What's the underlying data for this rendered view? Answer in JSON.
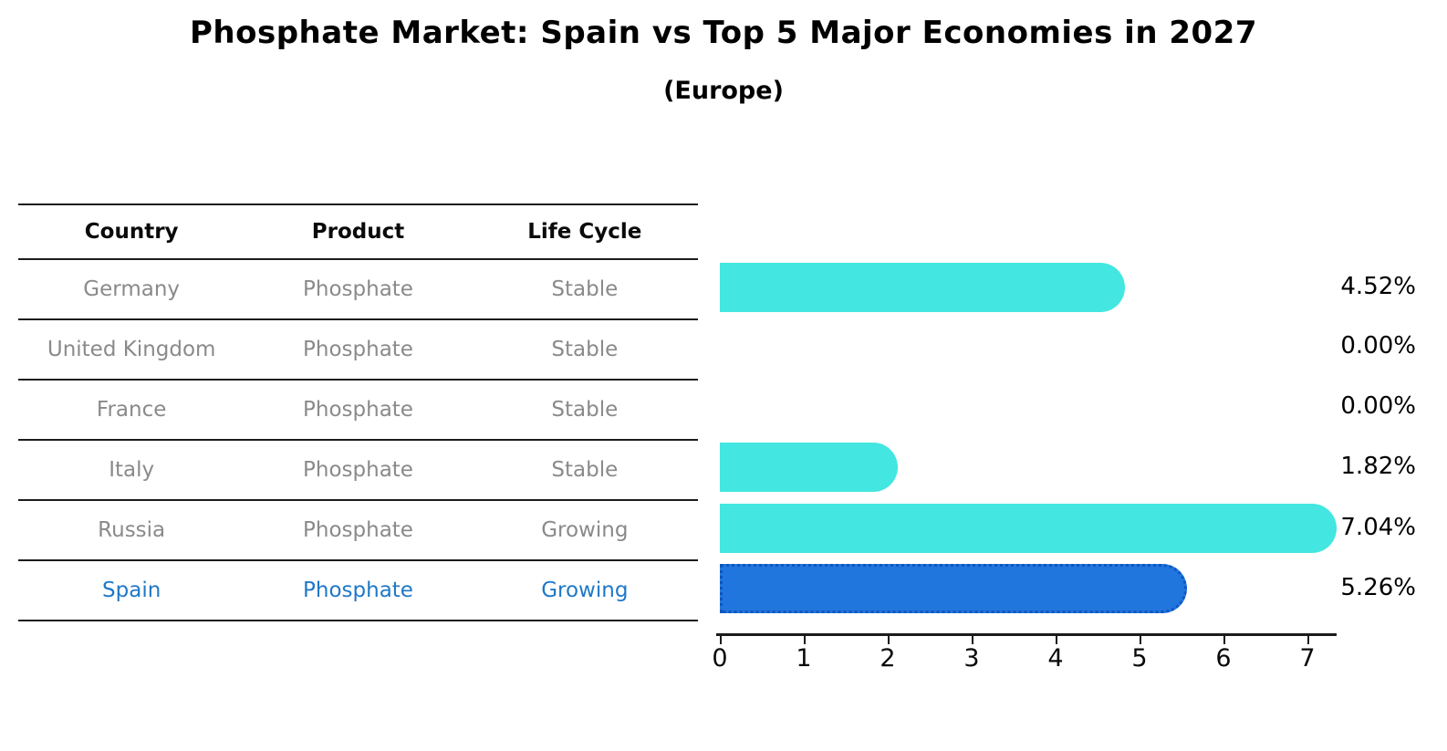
{
  "page": {
    "title": "Phosphate Market: Spain vs Top 5 Major Economies in 2027",
    "subtitle": "(Europe)"
  },
  "table": {
    "headers": [
      "Country",
      "Product",
      "Life Cycle"
    ],
    "rows": [
      {
        "country": "Germany",
        "product": "Phosphate",
        "life_cycle": "Stable",
        "highlighted": false
      },
      {
        "country": "United Kingdom",
        "product": "Phosphate",
        "life_cycle": "Stable",
        "highlighted": false
      },
      {
        "country": "France",
        "product": "Phosphate",
        "life_cycle": "Stable",
        "highlighted": false
      },
      {
        "country": "Italy",
        "product": "Phosphate",
        "life_cycle": "Stable",
        "highlighted": false
      },
      {
        "country": "Russia",
        "product": "Phosphate",
        "life_cycle": "Growing",
        "highlighted": false
      },
      {
        "country": "Spain",
        "product": "Phosphate",
        "life_cycle": "Growing",
        "highlighted": true
      }
    ]
  },
  "chart_data": {
    "type": "bar",
    "orientation": "horizontal",
    "title": "Phosphate Market: Spain vs Top 5 Major Economies in 2027",
    "subtitle": "(Europe)",
    "categories": [
      "Germany",
      "United Kingdom",
      "France",
      "Italy",
      "Russia",
      "Spain"
    ],
    "values": [
      4.52,
      0.0,
      0.0,
      1.82,
      7.04,
      5.26
    ],
    "value_labels": [
      "4.52%",
      "0.00%",
      "0.00%",
      "1.82%",
      "7.04%",
      "5.26%"
    ],
    "x_ticks": [
      "0",
      "1",
      "2",
      "3",
      "4",
      "5",
      "6",
      "7"
    ],
    "xlim": [
      0,
      7.3
    ],
    "xlabel": "",
    "ylabel": "",
    "grid": false,
    "legend": false,
    "colors": {
      "bar": "#43e6e0",
      "highlight_bar": "#2176dd",
      "highlight_border": "#0f56c0",
      "row_text": "#8a8a8a",
      "highlight_text": "#1f78c8",
      "axis": "#1c1c1c",
      "value_label_text": "#000000"
    }
  }
}
